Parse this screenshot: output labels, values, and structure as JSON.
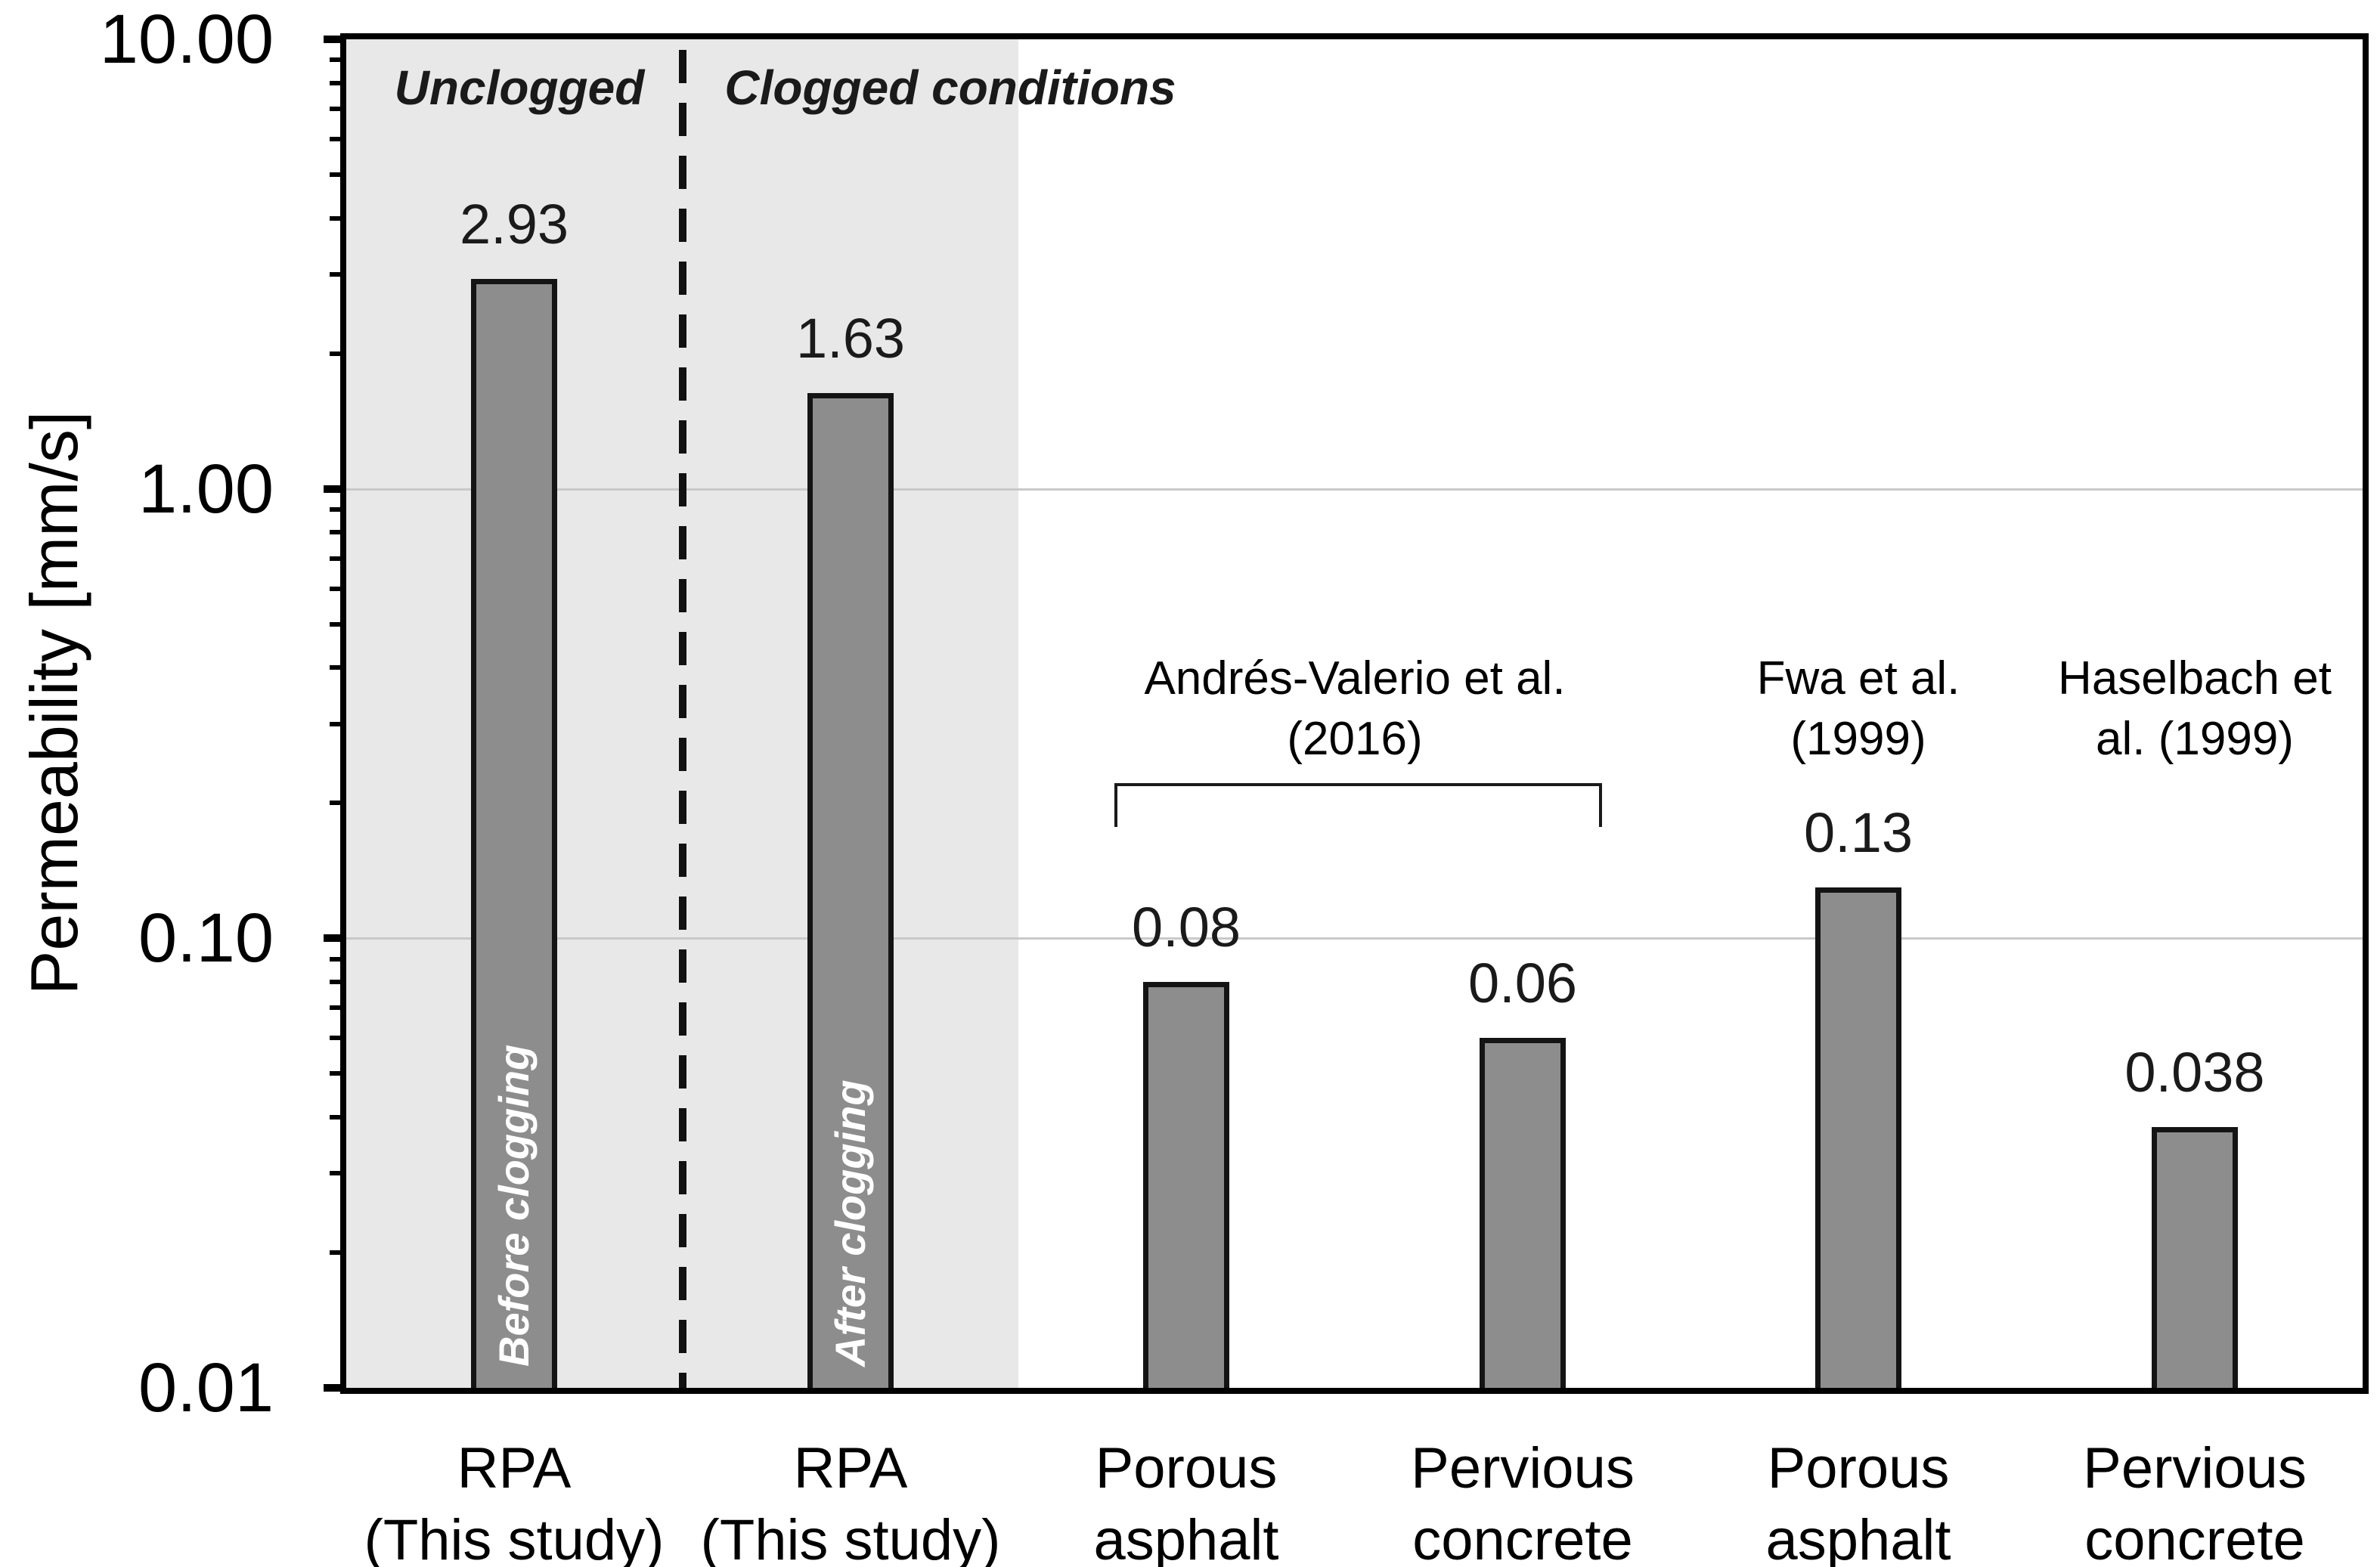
{
  "chart_data": {
    "type": "bar",
    "title": "",
    "ylabel": "Permeability [mm/s]",
    "xlabel": "",
    "yscale": "log",
    "ylim": [
      0.01,
      10
    ],
    "grid": "horizontal, major decades only",
    "legend_position": "none",
    "yticks": [
      {
        "value": 10,
        "label": "10.00"
      },
      {
        "value": 1,
        "label": "1.00"
      },
      {
        "value": 0.1,
        "label": "0.10"
      },
      {
        "value": 0.01,
        "label": "0.01"
      }
    ],
    "minor_ticks_per_decade": [
      9,
      8,
      7,
      6,
      5,
      4,
      3,
      2
    ],
    "gridline_values": [
      1,
      0.1
    ],
    "bars": [
      {
        "category_lines": [
          "RPA",
          "(This study)"
        ],
        "value": 2.93,
        "value_label": "2.93",
        "bar_text": "Before clogging",
        "condition": "Unclogged"
      },
      {
        "category_lines": [
          "RPA",
          "(This study)"
        ],
        "value": 1.63,
        "value_label": "1.63",
        "bar_text": "After clogging",
        "condition": "Clogged"
      },
      {
        "category_lines": [
          "Porous",
          "asphalt"
        ],
        "value": 0.08,
        "value_label": "0.08",
        "bar_text": "",
        "source": "Andrés-Valerio et al. (2016)"
      },
      {
        "category_lines": [
          "Pervious",
          "concrete"
        ],
        "value": 0.06,
        "value_label": "0.06",
        "bar_text": "",
        "source": "Andrés-Valerio et al. (2016)"
      },
      {
        "category_lines": [
          "Porous",
          "asphalt"
        ],
        "value": 0.13,
        "value_label": "0.13",
        "bar_text": "",
        "source": "Fwa et al. (1999)"
      },
      {
        "category_lines": [
          "Pervious",
          "concrete"
        ],
        "value": 0.038,
        "value_label": "0.038",
        "bar_text": "",
        "source": "Haselbach et al. (1999)"
      }
    ],
    "region_labels": [
      {
        "text": "Unclogged",
        "center_bar": 0
      },
      {
        "text": "Clogged conditions",
        "starts_after_divider": true
      }
    ],
    "divider": {
      "style": "dashed vertical line",
      "between_bars": [
        0,
        1
      ]
    },
    "shaded_region": {
      "covers_bars": [
        0,
        1
      ]
    },
    "annotations": [
      {
        "lines": [
          "Andrés-Valerio et al.",
          "(2016)"
        ],
        "bracket": true,
        "span_bars": [
          2,
          3
        ]
      },
      {
        "lines": [
          "Fwa et al.",
          "(1999)"
        ],
        "bracket": false,
        "bar": 4
      },
      {
        "lines": [
          "Haselbach et",
          "al. (1999)"
        ],
        "bracket": false,
        "bar": 5
      }
    ],
    "colors": {
      "background": "#ffffff",
      "bar_fill": "#8d8d8d",
      "bar_border": "#141414",
      "axis": "#000000",
      "gridline": "#c9c9c9",
      "shade": "#e8e8e8",
      "divider": "#111111",
      "value_label_color": "#1a1a1a",
      "bar_text_color": "#ffffff"
    }
  }
}
